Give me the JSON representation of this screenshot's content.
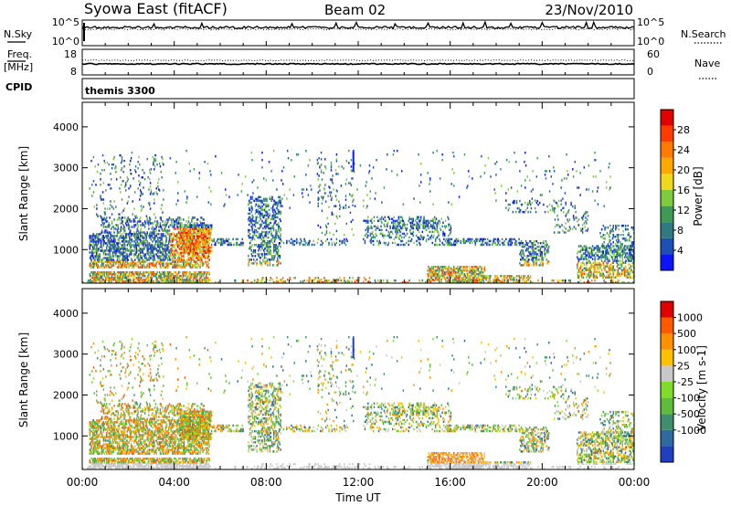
{
  "header": {
    "station": "Syowa East (fitACF)",
    "beam": "Beam 02",
    "date": "23/Nov/2010"
  },
  "noise_panel": {
    "left_label": "N.Sky",
    "right_label": "N.Search",
    "left_ticks": [
      "10^5",
      "10^0"
    ],
    "right_ticks": [
      "10^5",
      "10^0"
    ]
  },
  "freq_panel": {
    "left_label": "Freq.",
    "left_unit": "[MHz]",
    "right_label": "Nave",
    "left_ticks": [
      "18",
      "8"
    ],
    "right_ticks": [
      "60",
      "0"
    ]
  },
  "cpid": {
    "label": "CPID",
    "value": "themis 3300"
  },
  "time_axis": {
    "title": "Time UT",
    "ticks": [
      "00:00",
      "04:00",
      "08:00",
      "12:00",
      "16:00",
      "20:00",
      "00:00"
    ]
  },
  "chart_data": [
    {
      "type": "heatmap",
      "parameter": "power",
      "ylabel": "Slant Range [km]",
      "ylim": [
        180,
        4600
      ],
      "yticks": [
        1000,
        2000,
        3000,
        4000
      ],
      "xlim_hours": [
        0,
        24
      ],
      "colorbar": {
        "label": "Power [dB]",
        "range": [
          0,
          32
        ],
        "ticks": [
          "4",
          "8",
          "12",
          "16",
          "20",
          "24",
          "28"
        ],
        "colors": [
          "#0a14ff",
          "#1c50b4",
          "#2f7a80",
          "#3e9a55",
          "#7ecb3c",
          "#f0d81f",
          "#ffa800",
          "#ff7a00",
          "#ff3c00",
          "#e00000"
        ]
      }
    },
    {
      "type": "heatmap",
      "parameter": "velocity",
      "ylabel": "Slant Range [km]",
      "ylim": [
        180,
        4600
      ],
      "yticks": [
        1000,
        2000,
        3000,
        4000
      ],
      "xlim_hours": [
        0,
        24
      ],
      "colorbar": {
        "label": "Velocity [m s-1]",
        "ticks": [
          "1000",
          "500",
          "100",
          "25",
          "-25",
          "-100",
          "-500",
          "-1000"
        ],
        "colors": [
          "#1f3fbf",
          "#2c6aa0",
          "#3e8f6e",
          "#5fbd3c",
          "#7fdc2a",
          "#c8c8c8",
          "#ffc000",
          "#ff9000",
          "#ff5a00",
          "#e00000"
        ]
      }
    }
  ]
}
